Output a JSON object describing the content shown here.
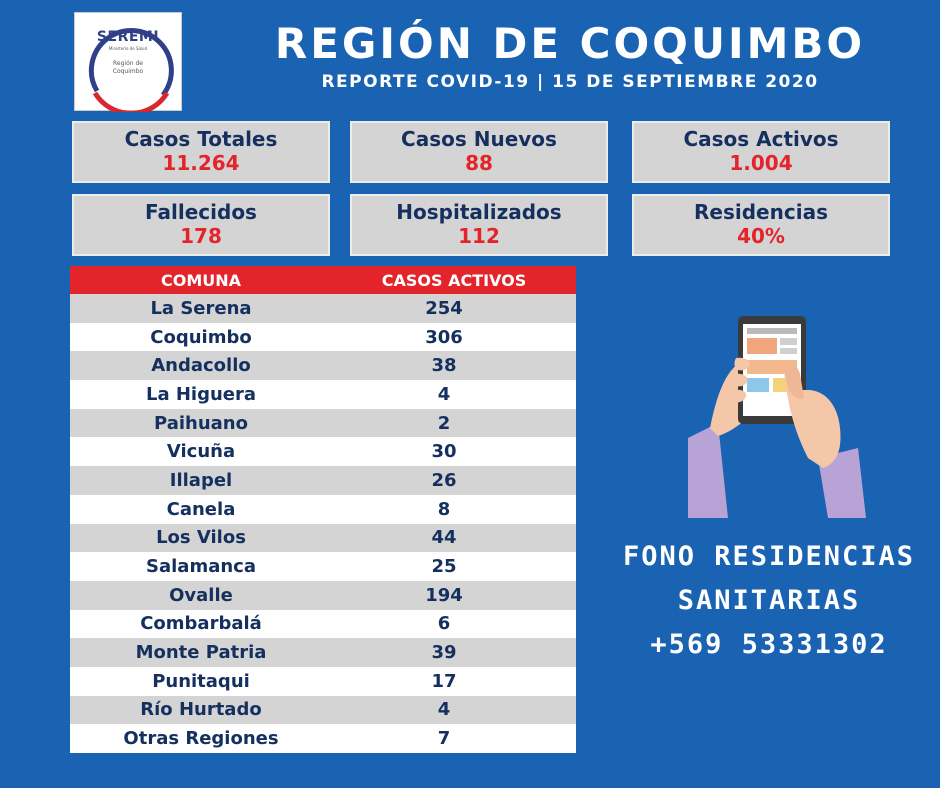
{
  "logo": {
    "name": "SEREMI",
    "ministry": "Ministerio de Salud",
    "region_line1": "Región de",
    "region_line2": "Coquimbo"
  },
  "header": {
    "title": "REGIÓN DE COQUIMBO",
    "subtitle": "REPORTE COVID-19 | 15 DE SEPTIEMBRE 2020"
  },
  "stats": [
    {
      "label": "Casos Totales",
      "value": "11.264"
    },
    {
      "label": "Casos Nuevos",
      "value": "88"
    },
    {
      "label": "Casos Activos",
      "value": "1.004"
    },
    {
      "label": "Fallecidos",
      "value": "178"
    },
    {
      "label": "Hospitalizados",
      "value": "112"
    },
    {
      "label": "Residencias",
      "value": "40%"
    }
  ],
  "table": {
    "headers": [
      "COMUNA",
      "CASOS ACTIVOS"
    ],
    "rows": [
      [
        "La Serena",
        "254"
      ],
      [
        "Coquimbo",
        "306"
      ],
      [
        "Andacollo",
        "38"
      ],
      [
        "La Higuera",
        "4"
      ],
      [
        "Paihuano",
        "2"
      ],
      [
        "Vicuña",
        "30"
      ],
      [
        "Illapel",
        "26"
      ],
      [
        "Canela",
        "8"
      ],
      [
        "Los Vilos",
        "44"
      ],
      [
        "Salamanca",
        "25"
      ],
      [
        "Ovalle",
        "194"
      ],
      [
        "Combarbalá",
        "6"
      ],
      [
        "Monte Patria",
        "39"
      ],
      [
        "Punitaqui",
        "17"
      ],
      [
        "Río Hurtado",
        "4"
      ],
      [
        "Otras Regiones",
        "7"
      ]
    ]
  },
  "fono": {
    "line1": "FONO RESIDENCIAS",
    "line2": "SANITARIAS",
    "line3": "+569 53331302"
  },
  "colors": {
    "background": "#1a63b3",
    "accent_red": "#e3242b",
    "card_bg": "#d4d4d4",
    "label_navy": "#15305f"
  },
  "icons": {
    "illustration": "hand-holding-phone-icon"
  }
}
